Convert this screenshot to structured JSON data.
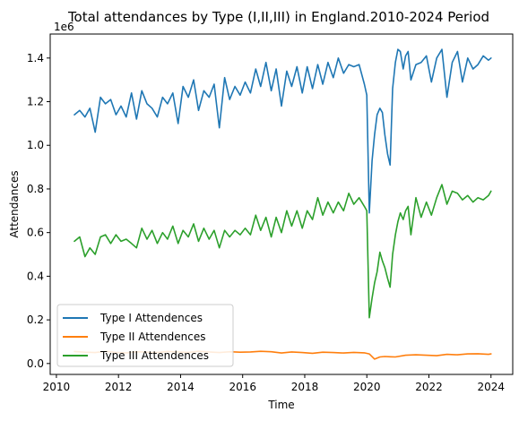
{
  "chart_data": {
    "type": "line",
    "title": "Total attendances by Type (I,II,III) in England.2010-2024 Period",
    "xlabel": "Time",
    "ylabel": "Attendances",
    "y_offset_label": "1e6",
    "xlim": [
      2009.8,
      2024.7
    ],
    "ylim": [
      -0.05,
      1.51
    ],
    "x_ticks": [
      2010,
      2012,
      2014,
      2016,
      2018,
      2020,
      2022,
      2024
    ],
    "x_tick_labels": [
      "2010",
      "2012",
      "2014",
      "2016",
      "2018",
      "2020",
      "2022",
      "2024"
    ],
    "y_ticks": [
      0.0,
      0.2,
      0.4,
      0.6,
      0.8,
      1.0,
      1.2,
      1.4
    ],
    "y_tick_labels": [
      "0.0",
      "0.2",
      "0.4",
      "0.6",
      "0.8",
      "1.0",
      "1.2",
      "1.4"
    ],
    "legend_position": "lower-left",
    "series": [
      {
        "name": "Type I Attendences",
        "color": "#1f77b4",
        "x": [
          2010.58,
          2010.75,
          2010.92,
          2011.08,
          2011.25,
          2011.42,
          2011.58,
          2011.75,
          2011.92,
          2012.08,
          2012.25,
          2012.42,
          2012.58,
          2012.75,
          2012.92,
          2013.08,
          2013.25,
          2013.42,
          2013.58,
          2013.75,
          2013.92,
          2014.08,
          2014.25,
          2014.42,
          2014.58,
          2014.75,
          2014.92,
          2015.08,
          2015.25,
          2015.42,
          2015.58,
          2015.75,
          2015.92,
          2016.08,
          2016.25,
          2016.42,
          2016.58,
          2016.75,
          2016.92,
          2017.08,
          2017.25,
          2017.42,
          2017.58,
          2017.75,
          2017.92,
          2018.08,
          2018.25,
          2018.42,
          2018.58,
          2018.75,
          2018.92,
          2019.08,
          2019.25,
          2019.42,
          2019.58,
          2019.75,
          2019.92,
          2020.0,
          2020.08,
          2020.17,
          2020.25,
          2020.33,
          2020.42,
          2020.5,
          2020.58,
          2020.67,
          2020.75,
          2020.83,
          2020.92,
          2021.0,
          2021.08,
          2021.17,
          2021.25,
          2021.33,
          2021.42,
          2021.58,
          2021.75,
          2021.92,
          2022.08,
          2022.25,
          2022.42,
          2022.58,
          2022.75,
          2022.92,
          2023.08,
          2023.25,
          2023.42,
          2023.58,
          2023.75,
          2023.92,
          2024.0
        ],
        "values": [
          1.14,
          1.16,
          1.13,
          1.17,
          1.06,
          1.22,
          1.19,
          1.21,
          1.14,
          1.18,
          1.13,
          1.24,
          1.12,
          1.25,
          1.19,
          1.17,
          1.13,
          1.22,
          1.19,
          1.24,
          1.1,
          1.27,
          1.22,
          1.3,
          1.16,
          1.25,
          1.22,
          1.28,
          1.08,
          1.31,
          1.21,
          1.27,
          1.23,
          1.29,
          1.24,
          1.35,
          1.27,
          1.38,
          1.25,
          1.35,
          1.18,
          1.34,
          1.27,
          1.36,
          1.24,
          1.36,
          1.26,
          1.37,
          1.28,
          1.38,
          1.31,
          1.4,
          1.33,
          1.37,
          1.36,
          1.37,
          1.28,
          1.23,
          0.69,
          0.93,
          1.05,
          1.14,
          1.17,
          1.15,
          1.05,
          0.96,
          0.91,
          1.26,
          1.38,
          1.44,
          1.43,
          1.35,
          1.41,
          1.43,
          1.3,
          1.37,
          1.38,
          1.41,
          1.29,
          1.4,
          1.44,
          1.22,
          1.38,
          1.43,
          1.29,
          1.4,
          1.35,
          1.37,
          1.41,
          1.39,
          1.4
        ]
      },
      {
        "name": "Type II Attendences",
        "color": "#ff7f0e",
        "x": [
          2010.58,
          2010.92,
          2011.25,
          2011.58,
          2011.92,
          2012.25,
          2012.58,
          2012.92,
          2013.25,
          2013.58,
          2013.92,
          2014.25,
          2014.58,
          2014.92,
          2015.25,
          2015.58,
          2015.92,
          2016.25,
          2016.58,
          2016.92,
          2017.25,
          2017.58,
          2017.92,
          2018.25,
          2018.58,
          2018.92,
          2019.25,
          2019.58,
          2019.92,
          2020.08,
          2020.25,
          2020.42,
          2020.58,
          2020.75,
          2020.92,
          2021.25,
          2021.58,
          2021.92,
          2022.25,
          2022.58,
          2022.92,
          2023.25,
          2023.58,
          2023.92,
          2024.0
        ],
        "values": [
          0.055,
          0.052,
          0.05,
          0.056,
          0.051,
          0.049,
          0.054,
          0.052,
          0.05,
          0.055,
          0.053,
          0.051,
          0.056,
          0.053,
          0.05,
          0.054,
          0.052,
          0.053,
          0.056,
          0.054,
          0.048,
          0.053,
          0.05,
          0.047,
          0.052,
          0.05,
          0.048,
          0.051,
          0.049,
          0.044,
          0.02,
          0.03,
          0.032,
          0.031,
          0.03,
          0.038,
          0.04,
          0.038,
          0.036,
          0.042,
          0.04,
          0.044,
          0.045,
          0.042,
          0.044
        ]
      },
      {
        "name": "Type III Attendences",
        "color": "#2ca02c",
        "x": [
          2010.58,
          2010.75,
          2010.92,
          2011.08,
          2011.25,
          2011.42,
          2011.58,
          2011.75,
          2011.92,
          2012.08,
          2012.25,
          2012.42,
          2012.58,
          2012.75,
          2012.92,
          2013.08,
          2013.25,
          2013.42,
          2013.58,
          2013.75,
          2013.92,
          2014.08,
          2014.25,
          2014.42,
          2014.58,
          2014.75,
          2014.92,
          2015.08,
          2015.25,
          2015.42,
          2015.58,
          2015.75,
          2015.92,
          2016.08,
          2016.25,
          2016.42,
          2016.58,
          2016.75,
          2016.92,
          2017.08,
          2017.25,
          2017.42,
          2017.58,
          2017.75,
          2017.92,
          2018.08,
          2018.25,
          2018.42,
          2018.58,
          2018.75,
          2018.92,
          2019.08,
          2019.25,
          2019.42,
          2019.58,
          2019.75,
          2019.92,
          2020.0,
          2020.08,
          2020.17,
          2020.25,
          2020.33,
          2020.42,
          2020.5,
          2020.58,
          2020.67,
          2020.75,
          2020.83,
          2020.92,
          2021.0,
          2021.08,
          2021.17,
          2021.25,
          2021.33,
          2021.42,
          2021.58,
          2021.75,
          2021.92,
          2022.08,
          2022.25,
          2022.42,
          2022.58,
          2022.75,
          2022.92,
          2023.08,
          2023.25,
          2023.42,
          2023.58,
          2023.75,
          2023.92,
          2024.0
        ],
        "values": [
          0.56,
          0.58,
          0.49,
          0.53,
          0.5,
          0.58,
          0.59,
          0.55,
          0.59,
          0.56,
          0.57,
          0.55,
          0.53,
          0.62,
          0.57,
          0.61,
          0.55,
          0.6,
          0.57,
          0.63,
          0.55,
          0.61,
          0.58,
          0.64,
          0.56,
          0.62,
          0.57,
          0.61,
          0.53,
          0.61,
          0.58,
          0.61,
          0.59,
          0.62,
          0.59,
          0.68,
          0.61,
          0.67,
          0.58,
          0.67,
          0.6,
          0.7,
          0.63,
          0.7,
          0.62,
          0.7,
          0.66,
          0.76,
          0.68,
          0.74,
          0.69,
          0.74,
          0.7,
          0.78,
          0.73,
          0.76,
          0.72,
          0.7,
          0.21,
          0.3,
          0.37,
          0.42,
          0.51,
          0.47,
          0.44,
          0.39,
          0.35,
          0.5,
          0.59,
          0.65,
          0.69,
          0.66,
          0.7,
          0.72,
          0.59,
          0.76,
          0.67,
          0.74,
          0.68,
          0.76,
          0.82,
          0.73,
          0.79,
          0.78,
          0.75,
          0.77,
          0.74,
          0.76,
          0.75,
          0.77,
          0.79
        ]
      }
    ]
  }
}
